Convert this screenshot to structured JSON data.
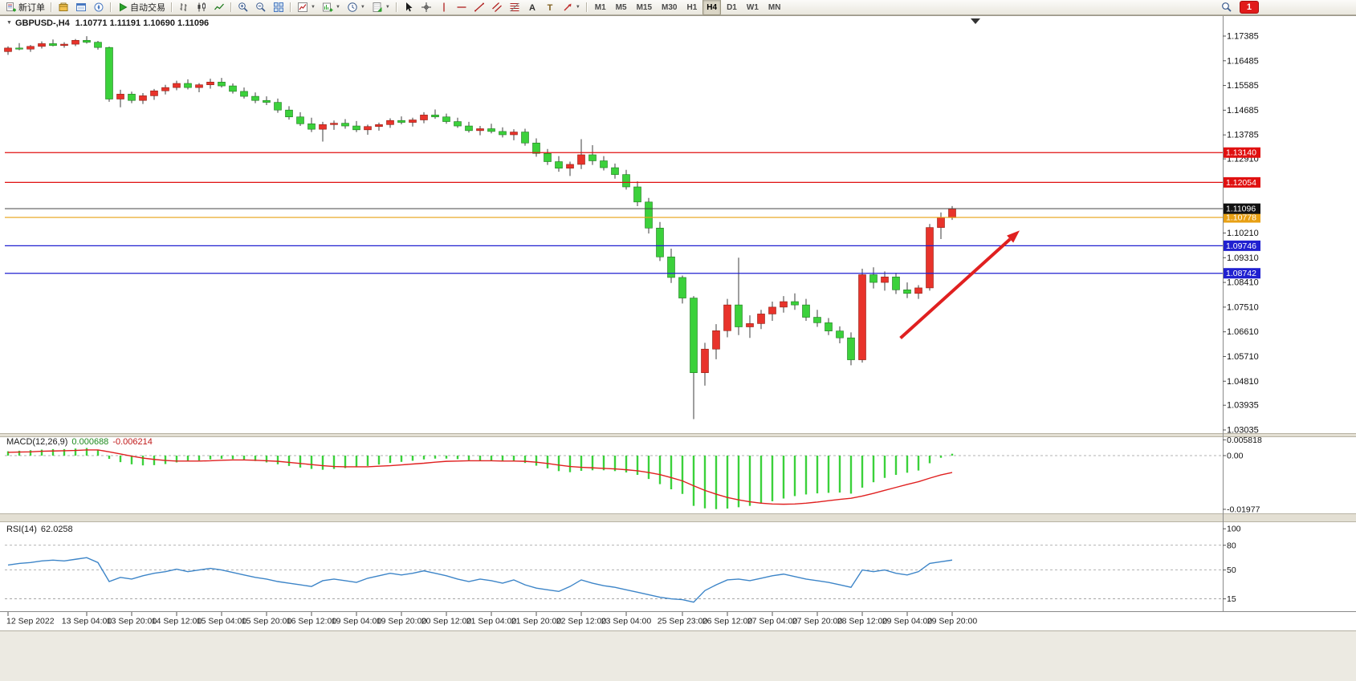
{
  "toolbar": {
    "timeframes": [
      "M1",
      "M5",
      "M15",
      "M30",
      "H1",
      "H4",
      "D1",
      "W1",
      "MN"
    ],
    "active_timeframe": "H4",
    "notification_badge": "1",
    "icon_groups": [
      {
        "items": [
          {
            "icon": "new-order-icon",
            "label": "新订单"
          }
        ]
      },
      {
        "items": [
          {
            "icon": "market-watch-icon"
          },
          {
            "icon": "data-window-icon"
          },
          {
            "icon": "navigator-icon"
          }
        ]
      },
      {
        "items": [
          {
            "icon": "autotrade-icon",
            "label": "自动交易"
          }
        ]
      },
      {
        "items": [
          {
            "icon": "bar-chart-icon"
          },
          {
            "icon": "candle-chart-icon"
          },
          {
            "icon": "line-chart-icon"
          }
        ]
      },
      {
        "items": [
          {
            "icon": "zoom-in-icon"
          },
          {
            "icon": "zoom-out-icon"
          },
          {
            "icon": "tile-windows-icon"
          }
        ]
      },
      {
        "items": [
          {
            "icon": "indicators-icon",
            "dropdown": true
          },
          {
            "icon": "new-chart-icon",
            "dropdown": true
          },
          {
            "icon": "periods-icon",
            "dropdown": true
          },
          {
            "icon": "templates-icon",
            "dropdown": true
          }
        ]
      },
      {
        "items": [
          {
            "icon": "cursor-icon"
          },
          {
            "icon": "crosshair-icon"
          },
          {
            "icon": "vline-icon"
          },
          {
            "icon": "hline-icon"
          },
          {
            "icon": "trendline-icon"
          },
          {
            "icon": "channel-icon"
          },
          {
            "icon": "fibo-icon"
          },
          {
            "icon": "text-icon"
          },
          {
            "icon": "label-icon"
          },
          {
            "icon": "arrows-icon",
            "dropdown": true
          }
        ]
      }
    ]
  },
  "chart": {
    "symbol": "GBPUSD-,H4",
    "ohlc": "1.10771 1.11191 1.10690 1.11096",
    "macd_label": "MACD(12,26,9)",
    "macd_value": "0.000688",
    "macd_signal_value": "-0.006214",
    "rsi_label": "RSI(14)",
    "rsi_value": "62.0258"
  },
  "chart_data": [
    {
      "type": "candlestick",
      "symbol": "GBPUSD-",
      "timeframe": "H4",
      "title": "GBPUSD-,H4",
      "current": {
        "open": 1.10771,
        "high": 1.11191,
        "low": 1.1069,
        "close": 1.11096
      },
      "colors": {
        "bull": "#e8332b",
        "bear": "#3bd13b"
      },
      "ylim": [
        1.02918,
        1.18115
      ],
      "y_ticks": [
        "1.17385",
        "1.16485",
        "1.15585",
        "1.14685",
        "1.13785",
        "1.12910",
        "1.10210",
        "1.09310",
        "1.08410",
        "1.07510",
        "1.06610",
        "1.05710",
        "1.04810",
        "1.03935",
        "1.03035"
      ],
      "levels": [
        {
          "price": 1.1314,
          "label": "1.13140",
          "color": "#e01010",
          "type": "resistance-line"
        },
        {
          "price": 1.12054,
          "label": "1.12054",
          "color": "#e01010",
          "type": "resistance-line"
        },
        {
          "price": 1.10778,
          "label": "1.10778",
          "color": "#e8a013",
          "type": "pivot-line"
        },
        {
          "price": 1.09746,
          "label": "1.09746",
          "color": "#2020d0",
          "type": "support-line"
        },
        {
          "price": 1.08742,
          "label": "1.08742",
          "color": "#2020d0",
          "type": "support-line"
        }
      ],
      "current_price_marker": {
        "price": 1.11096,
        "label": "1.11096",
        "color": "#111111"
      },
      "arrow": {
        "from_bar": 79.4,
        "from_price": 1.0638,
        "to_bar": 90,
        "to_price": 1.103,
        "color": "#e02020"
      },
      "x_labels": [
        {
          "i": 0,
          "t": "12 Sep 2022"
        },
        {
          "i": 7,
          "t": "13 Sep 04:00"
        },
        {
          "i": 11,
          "t": "13 Sep 20:00"
        },
        {
          "i": 15,
          "t": "14 Sep 12:00"
        },
        {
          "i": 19,
          "t": "15 Sep 04:00"
        },
        {
          "i": 23,
          "t": "15 Sep 20:00"
        },
        {
          "i": 27,
          "t": "16 Sep 12:00"
        },
        {
          "i": 31,
          "t": "19 Sep 04:00"
        },
        {
          "i": 35,
          "t": "19 Sep 20:00"
        },
        {
          "i": 39,
          "t": "20 Sep 12:00"
        },
        {
          "i": 43,
          "t": "21 Sep 04:00"
        },
        {
          "i": 47,
          "t": "21 Sep 20:00"
        },
        {
          "i": 51,
          "t": "22 Sep 12:00"
        },
        {
          "i": 55,
          "t": "23 Sep 04:00"
        },
        {
          "i": 60,
          "t": "25 Sep 23:00"
        },
        {
          "i": 64,
          "t": "26 Sep 12:00"
        },
        {
          "i": 68,
          "t": "27 Sep 04:00"
        },
        {
          "i": 72,
          "t": "27 Sep 20:00"
        },
        {
          "i": 76,
          "t": "28 Sep 12:00"
        },
        {
          "i": 80,
          "t": "29 Sep 04:00"
        },
        {
          "i": 84,
          "t": "29 Sep 20:00"
        }
      ],
      "candles": [
        [
          1.1682,
          1.1701,
          1.167,
          1.1695
        ],
        [
          1.1695,
          1.1713,
          1.1687,
          1.1691
        ],
        [
          1.1691,
          1.1706,
          1.1681,
          1.1701
        ],
        [
          1.1701,
          1.1719,
          1.1693,
          1.1711
        ],
        [
          1.1711,
          1.1726,
          1.1701,
          1.1704
        ],
        [
          1.1704,
          1.1716,
          1.1696,
          1.1709
        ],
        [
          1.1709,
          1.1728,
          1.1702,
          1.1723
        ],
        [
          1.1723,
          1.1738,
          1.1711,
          1.1716
        ],
        [
          1.1716,
          1.1721,
          1.1689,
          1.1697
        ],
        [
          1.1697,
          1.17,
          1.1499,
          1.1509
        ],
        [
          1.1509,
          1.1543,
          1.1479,
          1.1527
        ],
        [
          1.1527,
          1.1536,
          1.1494,
          1.1504
        ],
        [
          1.1504,
          1.1531,
          1.1491,
          1.1521
        ],
        [
          1.1521,
          1.1546,
          1.1506,
          1.1539
        ],
        [
          1.1539,
          1.1561,
          1.1526,
          1.1551
        ],
        [
          1.1551,
          1.1576,
          1.1541,
          1.1566
        ],
        [
          1.1566,
          1.1581,
          1.1544,
          1.1551
        ],
        [
          1.1551,
          1.1567,
          1.1534,
          1.1561
        ],
        [
          1.1561,
          1.1583,
          1.1547,
          1.1571
        ],
        [
          1.1571,
          1.1586,
          1.1551,
          1.1557
        ],
        [
          1.1557,
          1.1566,
          1.1529,
          1.1537
        ],
        [
          1.1537,
          1.1551,
          1.1511,
          1.1519
        ],
        [
          1.1519,
          1.1533,
          1.1494,
          1.1504
        ],
        [
          1.1504,
          1.1519,
          1.1487,
          1.1497
        ],
        [
          1.1497,
          1.1511,
          1.1459,
          1.1469
        ],
        [
          1.1469,
          1.1483,
          1.1434,
          1.1444
        ],
        [
          1.1444,
          1.1461,
          1.1411,
          1.1419
        ],
        [
          1.1419,
          1.1441,
          1.1389,
          1.1399
        ],
        [
          1.1399,
          1.1426,
          1.1354,
          1.1416
        ],
        [
          1.1416,
          1.1431,
          1.1397,
          1.1421
        ],
        [
          1.1421,
          1.1436,
          1.1401,
          1.1411
        ],
        [
          1.1411,
          1.1429,
          1.1389,
          1.1397
        ],
        [
          1.1397,
          1.1416,
          1.1379,
          1.1409
        ],
        [
          1.1409,
          1.1423,
          1.1394,
          1.1416
        ],
        [
          1.1416,
          1.1439,
          1.1404,
          1.1431
        ],
        [
          1.1431,
          1.1446,
          1.1417,
          1.1424
        ],
        [
          1.1424,
          1.1441,
          1.1409,
          1.1433
        ],
        [
          1.1433,
          1.1461,
          1.1421,
          1.1451
        ],
        [
          1.1451,
          1.1471,
          1.1437,
          1.1444
        ],
        [
          1.1444,
          1.1456,
          1.1419,
          1.1427
        ],
        [
          1.1427,
          1.1441,
          1.1404,
          1.1411
        ],
        [
          1.1411,
          1.1426,
          1.1387,
          1.1394
        ],
        [
          1.1394,
          1.1411,
          1.1377,
          1.1401
        ],
        [
          1.1401,
          1.1419,
          1.1384,
          1.1391
        ],
        [
          1.1391,
          1.1406,
          1.1369,
          1.1379
        ],
        [
          1.1379,
          1.1399,
          1.1359,
          1.1389
        ],
        [
          1.1389,
          1.1401,
          1.1339,
          1.1349
        ],
        [
          1.1349,
          1.1366,
          1.1299,
          1.1311
        ],
        [
          1.1311,
          1.1327,
          1.1269,
          1.1281
        ],
        [
          1.1281,
          1.1301,
          1.1244,
          1.1257
        ],
        [
          1.1257,
          1.1281,
          1.1229,
          1.1271
        ],
        [
          1.1271,
          1.1363,
          1.1254,
          1.1306
        ],
        [
          1.1306,
          1.1341,
          1.1269,
          1.1284
        ],
        [
          1.1284,
          1.1301,
          1.1249,
          1.1259
        ],
        [
          1.1259,
          1.1274,
          1.1219,
          1.1234
        ],
        [
          1.1234,
          1.1251,
          1.1179,
          1.1189
        ],
        [
          1.1189,
          1.1209,
          1.1119,
          1.1134
        ],
        [
          1.1134,
          1.1149,
          1.1019,
          1.1039
        ],
        [
          1.1039,
          1.1061,
          1.0919,
          1.0934
        ],
        [
          1.0934,
          1.0964,
          1.0839,
          1.0859
        ],
        [
          1.0859,
          1.0866,
          1.0764,
          1.0784
        ],
        [
          1.0784,
          1.0791,
          1.0343,
          1.0512
        ],
        [
          1.0512,
          1.0621,
          1.0465,
          1.0598
        ],
        [
          1.0598,
          1.0689,
          1.0561,
          1.0665
        ],
        [
          1.0665,
          1.0781,
          1.0641,
          1.0759
        ],
        [
          1.0759,
          1.0931,
          1.0649,
          1.0679
        ],
        [
          1.0679,
          1.0721,
          1.0639,
          1.0691
        ],
        [
          1.0691,
          1.0741,
          1.0671,
          1.0726
        ],
        [
          1.0726,
          1.0771,
          1.0701,
          1.0751
        ],
        [
          1.0751,
          1.0791,
          1.0731,
          1.0771
        ],
        [
          1.0771,
          1.0801,
          1.0741,
          1.0759
        ],
        [
          1.0759,
          1.0781,
          1.0701,
          1.0714
        ],
        [
          1.0714,
          1.0741,
          1.0679,
          1.0694
        ],
        [
          1.0694,
          1.0711,
          1.0649,
          1.0664
        ],
        [
          1.0664,
          1.0681,
          1.0619,
          1.0639
        ],
        [
          1.0639,
          1.0659,
          1.0539,
          1.0559
        ],
        [
          1.0559,
          1.0891,
          1.0549,
          1.0869
        ],
        [
          1.0869,
          1.0896,
          1.0819,
          1.0841
        ],
        [
          1.0841,
          1.0881,
          1.0811,
          1.0861
        ],
        [
          1.0861,
          1.0876,
          1.0799,
          1.0814
        ],
        [
          1.0814,
          1.0841,
          1.0784,
          1.0801
        ],
        [
          1.0801,
          1.0831,
          1.0781,
          1.0821
        ],
        [
          1.0821,
          1.1054,
          1.0811,
          1.1041
        ],
        [
          1.1041,
          1.1096,
          1.0999,
          1.1077
        ],
        [
          1.10771,
          1.11191,
          1.1069,
          1.11096
        ]
      ]
    },
    {
      "type": "bar",
      "title": "MACD(12,26,9)",
      "values_display": [
        "0.000688",
        "-0.006214"
      ],
      "ylim": [
        -0.02126,
        0.00709
      ],
      "y_ticks": [
        {
          "v": 0.005818,
          "label": "0.005818"
        },
        {
          "v": 0,
          "label": "0.00"
        },
        {
          "v": -0.01977,
          "label": "-0.01977"
        }
      ],
      "histogram_color": "#3bd13b",
      "signal_color": "#e02020",
      "histogram": [
        0.0016,
        0.0018,
        0.002,
        0.0022,
        0.0024,
        0.0024,
        0.0026,
        0.0028,
        0.002,
        -0.0012,
        -0.0024,
        -0.0032,
        -0.0036,
        -0.0035,
        -0.0031,
        -0.0025,
        -0.0021,
        -0.0018,
        -0.0014,
        -0.0012,
        -0.0013,
        -0.0016,
        -0.002,
        -0.0025,
        -0.0032,
        -0.0038,
        -0.0044,
        -0.0049,
        -0.0052,
        -0.0049,
        -0.0046,
        -0.0043,
        -0.0038,
        -0.0033,
        -0.0027,
        -0.0023,
        -0.0019,
        -0.0014,
        -0.0011,
        -0.0011,
        -0.0013,
        -0.0017,
        -0.0019,
        -0.002,
        -0.0022,
        -0.0022,
        -0.0027,
        -0.0037,
        -0.0047,
        -0.0057,
        -0.0061,
        -0.0056,
        -0.0054,
        -0.0054,
        -0.0057,
        -0.0062,
        -0.0071,
        -0.0086,
        -0.0105,
        -0.0124,
        -0.0141,
        -0.0185,
        -0.0194,
        -0.0197,
        -0.0195,
        -0.019,
        -0.0185,
        -0.0177,
        -0.0168,
        -0.0158,
        -0.0149,
        -0.0143,
        -0.0139,
        -0.0137,
        -0.0136,
        -0.014,
        -0.0118,
        -0.0098,
        -0.0082,
        -0.0071,
        -0.0063,
        -0.0055,
        -0.0028,
        -0.0008,
        0.000688
      ],
      "signal": [
        0.0012,
        0.0013,
        0.0014,
        0.0016,
        0.0017,
        0.0018,
        0.0019,
        0.0021,
        0.0021,
        0.0014,
        0.0006,
        -0.0002,
        -0.0009,
        -0.0014,
        -0.0018,
        -0.002,
        -0.002,
        -0.002,
        -0.0019,
        -0.0017,
        -0.0016,
        -0.0016,
        -0.0017,
        -0.0019,
        -0.0021,
        -0.0025,
        -0.0029,
        -0.0033,
        -0.0037,
        -0.004,
        -0.0041,
        -0.0041,
        -0.0041,
        -0.0039,
        -0.0037,
        -0.0034,
        -0.0031,
        -0.0028,
        -0.0024,
        -0.0021,
        -0.002,
        -0.0019,
        -0.0019,
        -0.0019,
        -0.002,
        -0.002,
        -0.0021,
        -0.0024,
        -0.0029,
        -0.0035,
        -0.004,
        -0.0043,
        -0.0045,
        -0.0047,
        -0.0049,
        -0.0052,
        -0.0056,
        -0.0062,
        -0.007,
        -0.0081,
        -0.0093,
        -0.0111,
        -0.0128,
        -0.0142,
        -0.0154,
        -0.0163,
        -0.017,
        -0.0175,
        -0.0178,
        -0.0179,
        -0.0178,
        -0.0175,
        -0.0171,
        -0.0166,
        -0.0161,
        -0.0157,
        -0.0149,
        -0.0139,
        -0.0128,
        -0.0117,
        -0.0106,
        -0.0096,
        -0.0083,
        -0.0071,
        -0.006214
      ]
    },
    {
      "type": "line",
      "title": "RSI(14)",
      "current_value": 62.0258,
      "ylim": [
        0,
        108
      ],
      "y_ticks": [
        {
          "v": 100,
          "label": "100"
        },
        {
          "v": 80,
          "label": "80"
        },
        {
          "v": 50,
          "label": "50"
        },
        {
          "v": 15,
          "label": "15"
        }
      ],
      "levels_dashed": [
        80,
        50,
        15
      ],
      "line_color": "#3d85c8",
      "values": [
        56,
        58,
        59,
        61,
        62,
        61,
        63,
        65,
        59,
        36,
        41,
        39,
        43,
        46,
        48,
        51,
        48,
        50,
        52,
        50,
        47,
        44,
        41,
        39,
        36,
        34,
        32,
        30,
        37,
        39,
        37,
        35,
        40,
        43,
        46,
        44,
        46,
        49,
        46,
        43,
        39,
        36,
        39,
        37,
        34,
        38,
        32,
        28,
        26,
        24,
        30,
        38,
        34,
        31,
        29,
        26,
        23,
        20,
        17,
        15,
        14,
        11,
        25,
        32,
        38,
        39,
        37,
        40,
        43,
        45,
        42,
        39,
        37,
        35,
        32,
        29,
        50,
        48,
        50,
        46,
        44,
        48,
        58,
        60,
        62.03
      ]
    }
  ]
}
